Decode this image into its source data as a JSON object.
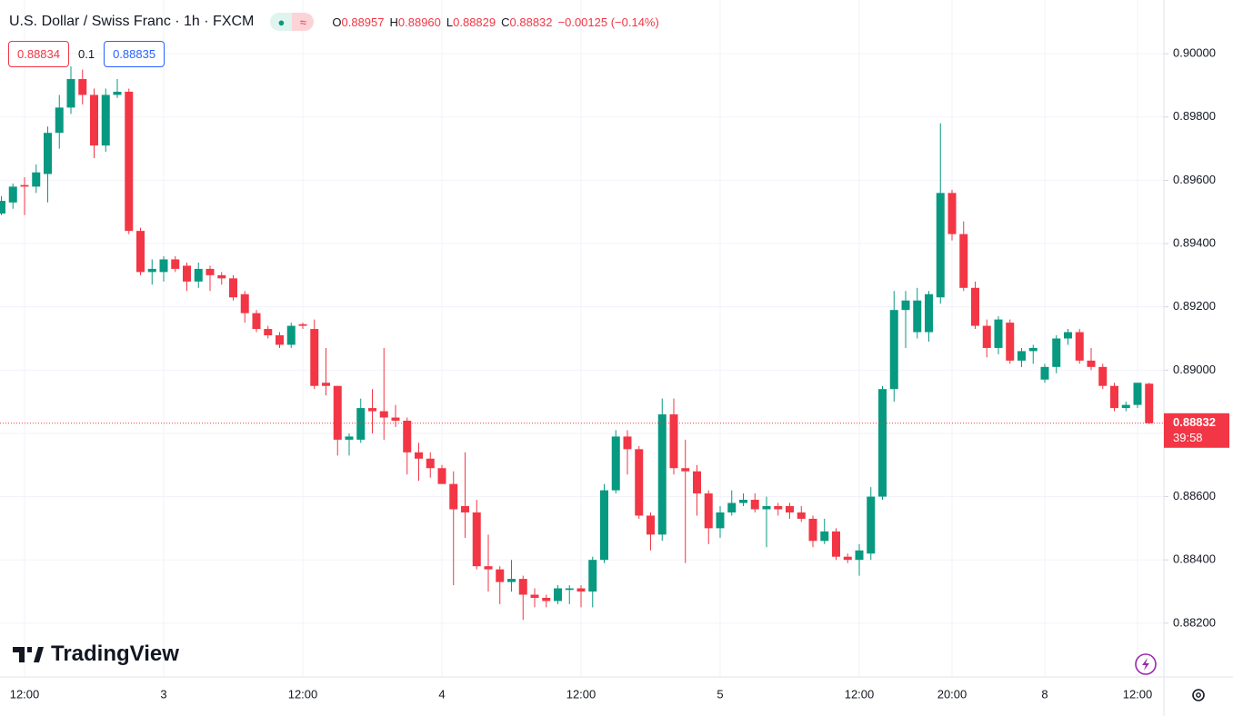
{
  "chart_data": {
    "type": "candlestick",
    "title": "U.S. Dollar / Swiss Franc · 1h · FXCM",
    "ohlc_legend": [
      {
        "key": "O",
        "value": "0.88957"
      },
      {
        "key": "H",
        "value": "0.88960"
      },
      {
        "key": "L",
        "value": "0.88829"
      },
      {
        "key": "C",
        "value": "0.88832"
      }
    ],
    "change": "−0.00125 (−0.14%)",
    "trade_buttons": {
      "sell": "0.88834",
      "spread": "0.1",
      "buy": "0.88835"
    },
    "categories": [
      null,
      null,
      "12:00",
      null,
      null,
      null,
      null,
      null,
      null,
      null,
      null,
      null,
      null,
      null,
      "3",
      null,
      null,
      null,
      null,
      null,
      null,
      null,
      null,
      null,
      null,
      null,
      "12:00",
      null,
      null,
      null,
      null,
      null,
      null,
      null,
      null,
      null,
      null,
      null,
      "4",
      null,
      null,
      null,
      null,
      null,
      null,
      null,
      null,
      null,
      null,
      null,
      "12:00",
      null,
      null,
      null,
      null,
      null,
      null,
      null,
      null,
      null,
      null,
      null,
      "5",
      null,
      null,
      null,
      null,
      null,
      null,
      null,
      null,
      null,
      null,
      null,
      "12:00",
      null,
      null,
      null,
      null,
      null,
      null,
      null,
      "20:00",
      null,
      null,
      null,
      null,
      null,
      null,
      null,
      "8",
      null,
      null,
      null,
      null,
      null,
      null,
      null,
      "12:00",
      null
    ],
    "open": [
      0.89495,
      0.8953,
      0.89585,
      0.8958,
      0.8962,
      0.8975,
      0.8983,
      0.8992,
      0.8987,
      0.8971,
      0.8987,
      0.8988,
      0.8944,
      0.8931,
      0.8931,
      0.8935,
      0.8933,
      0.8928,
      0.8932,
      0.893,
      0.8929,
      0.8924,
      0.8918,
      0.8913,
      0.8911,
      0.8908,
      0.89145,
      0.8913,
      0.8896,
      0.8895,
      0.8878,
      0.8878,
      0.8888,
      0.8887,
      0.8885,
      0.8884,
      0.8874,
      0.8872,
      0.8869,
      0.8864,
      0.8857,
      0.8855,
      0.8838,
      0.8837,
      0.8833,
      0.8834,
      0.8829,
      0.8828,
      0.8827,
      0.88305,
      0.8831,
      0.883,
      0.884,
      0.8862,
      0.8879,
      0.8875,
      0.8854,
      0.8848,
      0.8886,
      0.8869,
      0.8868,
      0.8861,
      0.885,
      0.8855,
      0.8858,
      0.8859,
      0.8856,
      0.8857,
      0.8857,
      0.8855,
      0.8853,
      0.8846,
      0.8849,
      0.8841,
      0.884,
      0.8842,
      0.886,
      0.8894,
      0.8919,
      0.8912,
      0.8912,
      0.8923,
      0.8956,
      0.8943,
      0.8926,
      0.8914,
      0.8907,
      0.8915,
      0.8903,
      0.8906,
      0.8897,
      0.8901,
      0.891,
      0.8912,
      0.8903,
      0.8901,
      0.8895,
      0.8888,
      0.8889,
      0.88957
    ],
    "high": [
      0.8955,
      0.8959,
      0.8961,
      0.8965,
      0.8977,
      0.8987,
      0.8996,
      0.8995,
      0.8989,
      0.8989,
      0.8992,
      0.8989,
      0.8945,
      0.8935,
      0.8936,
      0.8936,
      0.8934,
      0.8934,
      0.8933,
      0.8931,
      0.893,
      0.8925,
      0.8919,
      0.8914,
      0.8912,
      0.8915,
      0.8915,
      0.8916,
      0.8907,
      0.8895,
      0.888,
      0.8891,
      0.8894,
      0.8907,
      0.8889,
      0.8885,
      0.8877,
      0.8874,
      0.887,
      0.8868,
      0.8874,
      0.8859,
      0.8848,
      0.8838,
      0.884,
      0.8835,
      0.8831,
      0.8829,
      0.8832,
      0.8832,
      0.8832,
      0.8841,
      0.8864,
      0.8881,
      0.8881,
      0.8876,
      0.8855,
      0.8891,
      0.8891,
      0.8878,
      0.887,
      0.8862,
      0.8857,
      0.8862,
      0.8861,
      0.8861,
      0.886,
      0.8858,
      0.8858,
      0.8857,
      0.8854,
      0.8853,
      0.885,
      0.8842,
      0.8845,
      0.8863,
      0.8895,
      0.8925,
      0.8925,
      0.8926,
      0.8925,
      0.8978,
      0.8957,
      0.8947,
      0.8928,
      0.8916,
      0.8917,
      0.8916,
      0.8907,
      0.8908,
      0.8902,
      0.8911,
      0.8913,
      0.8913,
      0.8907,
      0.8902,
      0.8896,
      0.889,
      0.8896,
      0.8896
    ],
    "low": [
      0.8949,
      0.8951,
      0.8949,
      0.8956,
      0.8953,
      0.897,
      0.8981,
      0.8984,
      0.8967,
      0.8969,
      0.8986,
      0.8943,
      0.893,
      0.8927,
      0.8928,
      0.8931,
      0.8925,
      0.8926,
      0.8925,
      0.8927,
      0.8922,
      0.8915,
      0.8912,
      0.891,
      0.8907,
      0.8907,
      0.8913,
      0.8894,
      0.8892,
      0.8873,
      0.8873,
      0.8877,
      0.888,
      0.8878,
      0.8882,
      0.8867,
      0.8865,
      0.8866,
      0.8864,
      0.8832,
      0.8847,
      0.8837,
      0.883,
      0.8826,
      0.883,
      0.8821,
      0.8825,
      0.8825,
      0.8826,
      0.8826,
      0.8825,
      0.8825,
      0.8839,
      0.8861,
      0.8867,
      0.8853,
      0.8843,
      0.8846,
      0.8867,
      0.8839,
      0.8854,
      0.8845,
      0.8847,
      0.8854,
      0.8857,
      0.8855,
      0.8844,
      0.8854,
      0.8853,
      0.8852,
      0.8844,
      0.8845,
      0.884,
      0.8839,
      0.8835,
      0.884,
      0.8859,
      0.889,
      0.8907,
      0.891,
      0.8909,
      0.8921,
      0.8941,
      0.8925,
      0.8913,
      0.8904,
      0.8905,
      0.8902,
      0.8901,
      0.8902,
      0.8896,
      0.8899,
      0.8908,
      0.8902,
      0.89,
      0.8894,
      0.8887,
      0.8887,
      0.8888,
      0.88829
    ],
    "close": [
      0.89535,
      0.8958,
      0.8958,
      0.89625,
      0.8975,
      0.8983,
      0.8992,
      0.8987,
      0.8971,
      0.8987,
      0.8988,
      0.8944,
      0.8931,
      0.8932,
      0.8935,
      0.8932,
      0.8928,
      0.8932,
      0.893,
      0.8929,
      0.8923,
      0.8918,
      0.8913,
      0.8911,
      0.8908,
      0.8914,
      0.8914,
      0.8895,
      0.8895,
      0.8878,
      0.8879,
      0.8888,
      0.8887,
      0.8885,
      0.8884,
      0.8874,
      0.8872,
      0.8869,
      0.8864,
      0.8856,
      0.8855,
      0.8838,
      0.8837,
      0.8833,
      0.8834,
      0.8829,
      0.8828,
      0.8827,
      0.8831,
      0.8831,
      0.883,
      0.884,
      0.8862,
      0.8879,
      0.8875,
      0.8854,
      0.8848,
      0.8886,
      0.8869,
      0.8868,
      0.8861,
      0.885,
      0.8855,
      0.8858,
      0.8859,
      0.8856,
      0.8857,
      0.8856,
      0.8855,
      0.8853,
      0.8846,
      0.8849,
      0.8841,
      0.884,
      0.8843,
      0.886,
      0.8894,
      0.8919,
      0.8922,
      0.8922,
      0.8924,
      0.8956,
      0.8943,
      0.8926,
      0.8914,
      0.8907,
      0.8916,
      0.8903,
      0.8906,
      0.8907,
      0.8901,
      0.891,
      0.8912,
      0.8903,
      0.8901,
      0.8895,
      0.8888,
      0.8889,
      0.8896,
      0.88832
    ],
    "up_color": "#089981",
    "down_color": "#f23645",
    "ylim": [
      0.8803,
      0.9017
    ],
    "yticks": [
      {
        "value": 0.882,
        "label": "0.88200"
      },
      {
        "value": 0.884,
        "label": "0.88400"
      },
      {
        "value": 0.886,
        "label": "0.88600"
      },
      {
        "value": 0.888,
        "label": "0.88800"
      },
      {
        "value": 0.89,
        "label": "0.89000"
      },
      {
        "value": 0.892,
        "label": "0.89200"
      },
      {
        "value": 0.894,
        "label": "0.89400"
      },
      {
        "value": 0.896,
        "label": "0.89600"
      },
      {
        "value": 0.898,
        "label": "0.89800"
      },
      {
        "value": 0.9,
        "label": "0.90000"
      }
    ],
    "grid": true,
    "last_price": {
      "value": 0.88832,
      "label": "0.88832"
    },
    "countdown": "39:58",
    "brand": "TradingView"
  }
}
